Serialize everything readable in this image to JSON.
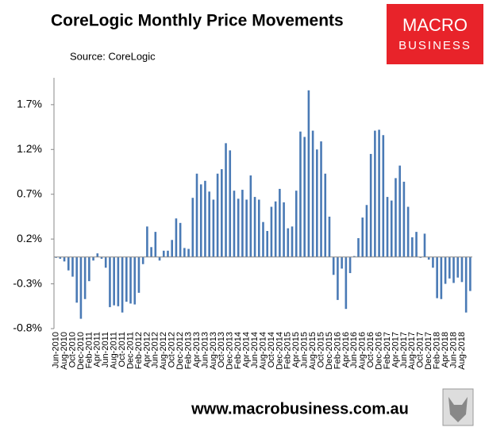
{
  "chart_data": {
    "type": "bar",
    "title": "CoreLogic Monthly Price Movements",
    "subtitle": "Source: CoreLogic",
    "logo": [
      "MACRO",
      "BUSINESS"
    ],
    "footer": "www.macrobusiness.com.au",
    "color": "#4a7ab5",
    "ylim": [
      -0.8,
      2.0
    ],
    "yticks": [
      {
        "value": -0.8,
        "label": "-0.8%"
      },
      {
        "value": -0.3,
        "label": "-0.3%"
      },
      {
        "value": 0.2,
        "label": "0.2%"
      },
      {
        "value": 0.7,
        "label": "0.7%"
      },
      {
        "value": 1.2,
        "label": "1.2%"
      },
      {
        "value": 1.7,
        "label": "1.7%"
      }
    ],
    "grid": false,
    "categories": [
      "Jun-2010",
      null,
      "Aug-2010",
      null,
      "Oct-2010",
      null,
      "Dec-2010",
      null,
      "Feb-2011",
      null,
      "Apr-2011",
      null,
      "Jun-2011",
      null,
      "Aug-2011",
      null,
      "Oct-2011",
      null,
      "Dec-2011",
      null,
      "Feb-2012",
      null,
      "Apr-2012",
      null,
      "Jun-2012",
      null,
      "Aug-2012",
      null,
      "Oct-2012",
      null,
      "Dec-2012",
      null,
      "Feb-2013",
      null,
      "Apr-2013",
      null,
      "Jun-2013",
      null,
      "Aug-2013",
      null,
      "Oct-2013",
      null,
      "Dec-2013",
      null,
      "Feb-2014",
      null,
      "Apr-2014",
      null,
      "Jun-2014",
      null,
      "Aug-2014",
      null,
      "Oct-2014",
      null,
      "Dec-2014",
      null,
      "Feb-2015",
      null,
      "Apr-2015",
      null,
      "Jun-2015",
      null,
      "Aug-2015",
      null,
      "Oct-2015",
      null,
      "Dec-2015",
      null,
      "Feb-2016",
      null,
      "Apr-2016",
      null,
      "Jun-2016",
      null,
      "Aug-2016",
      null,
      "Oct-2016",
      null,
      "Dec-2016",
      null,
      "Feb-2017",
      null,
      "Apr-2017",
      null,
      "Jun-2017",
      null,
      "Aug-2017",
      null,
      "Oct-2017",
      null,
      "Dec-2017",
      null,
      "Feb-2018",
      null,
      "Apr-2018",
      null,
      "Jun-2018",
      null,
      "Aug-2018",
      null,
      null
    ],
    "values": [
      -0.01,
      -0.02,
      -0.05,
      -0.15,
      -0.22,
      -0.51,
      -0.69,
      -0.47,
      -0.27,
      -0.04,
      0.04,
      -0.02,
      -0.12,
      -0.56,
      -0.54,
      -0.55,
      -0.62,
      -0.5,
      -0.52,
      -0.53,
      -0.4,
      -0.08,
      0.34,
      0.11,
      0.28,
      -0.04,
      0.07,
      0.07,
      0.19,
      0.43,
      0.38,
      0.1,
      0.09,
      0.66,
      0.93,
      0.81,
      0.85,
      0.73,
      0.64,
      0.93,
      0.98,
      1.27,
      1.19,
      0.74,
      0.65,
      0.75,
      0.64,
      0.91,
      0.67,
      0.64,
      0.39,
      0.29,
      0.56,
      0.62,
      0.76,
      0.61,
      0.32,
      0.34,
      0.74,
      1.4,
      1.34,
      1.86,
      1.41,
      1.2,
      1.29,
      0.93,
      0.45,
      -0.2,
      -0.48,
      -0.13,
      -0.58,
      -0.18,
      0.01,
      0.21,
      0.44,
      0.58,
      1.15,
      1.41,
      1.42,
      1.36,
      0.67,
      0.63,
      0.88,
      1.02,
      0.84,
      0.56,
      0.22,
      0.28,
      -0.01,
      0.26,
      -0.03,
      -0.12,
      -0.46,
      -0.47,
      -0.3,
      -0.24,
      -0.29,
      -0.23,
      -0.28,
      -0.62,
      -0.38
    ]
  }
}
